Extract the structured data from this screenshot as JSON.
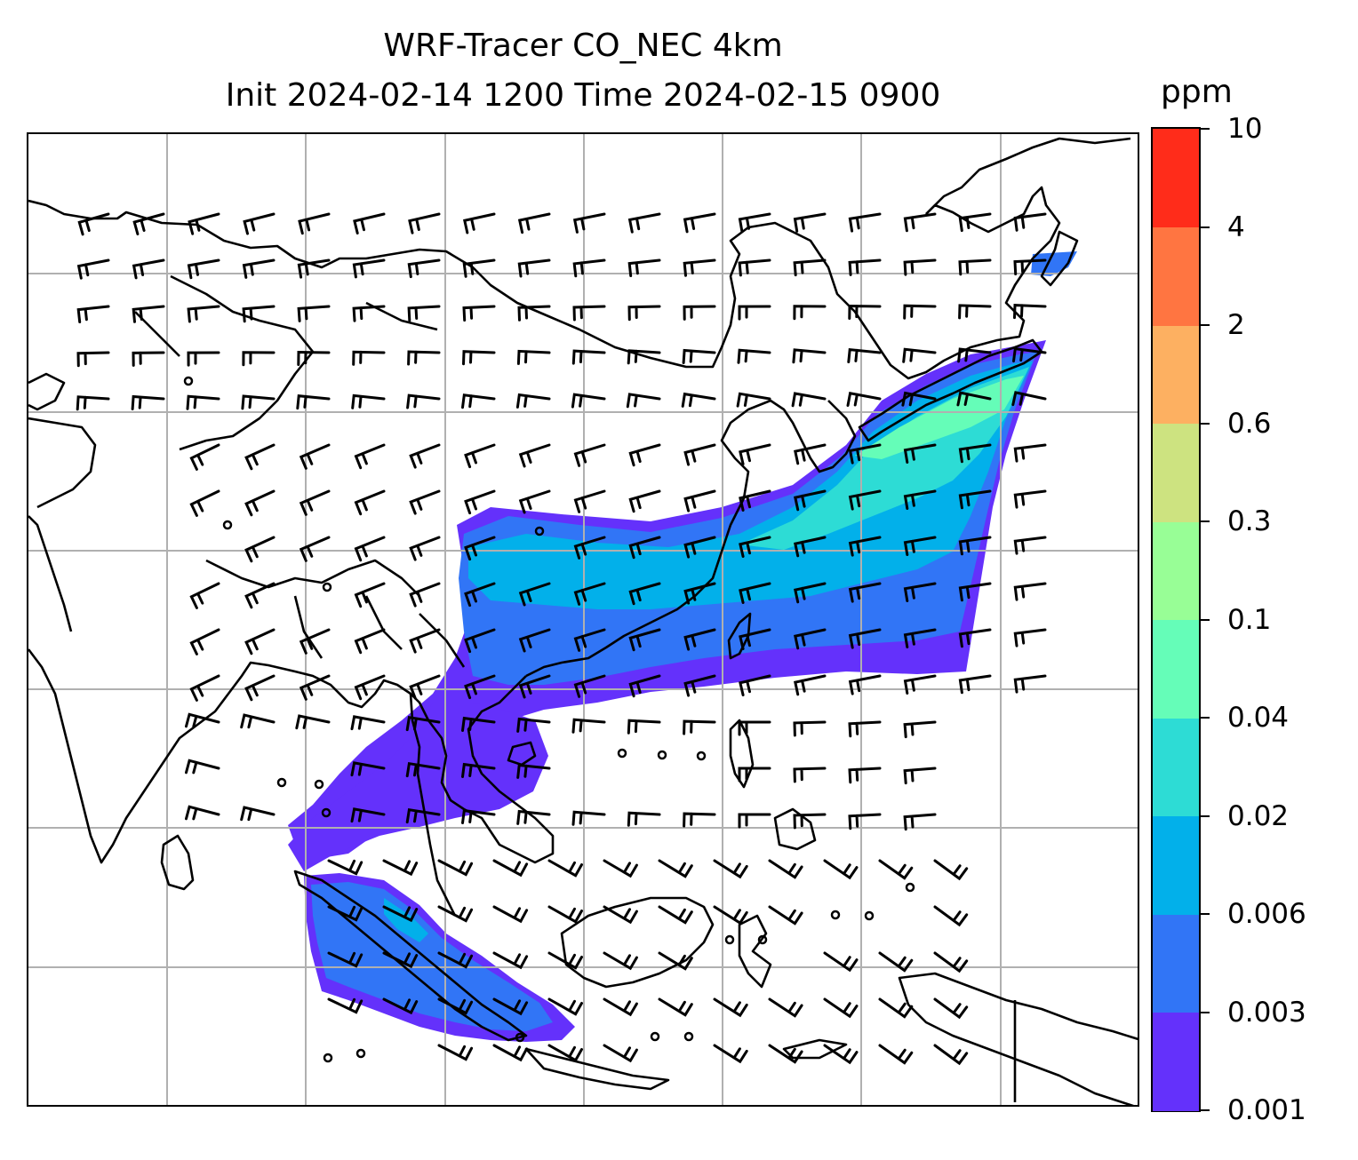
{
  "title_line1": "WRF-Tracer CO_NEC 4km",
  "title_line2": "Init 2024-02-14 1200 Time 2024-02-15 0900",
  "colorbar": {
    "units": "ppm",
    "tick_labels": [
      "0.001",
      "0.003",
      "0.006",
      "0.02",
      "0.04",
      "0.1",
      "0.3",
      "0.6",
      "2",
      "4",
      "10"
    ],
    "colors": [
      "#6431fb",
      "#3175f6",
      "#02b0ea",
      "#2ddcd5",
      "#65fdb8",
      "#98fe96",
      "#cde380",
      "#fdb061",
      "#ff7541",
      "#ff2c1a"
    ]
  },
  "map": {
    "gridlines": true,
    "concentration_colors": {
      "lowest": "#6431fb",
      "low": "#3175f6",
      "mid": "#02b0ea",
      "mid_high": "#2ddcd5",
      "high": "#65fdb8"
    },
    "coastline_color": "#000000",
    "gridline_color": "#b0b0b0",
    "wind_barb_color": "#000000"
  }
}
